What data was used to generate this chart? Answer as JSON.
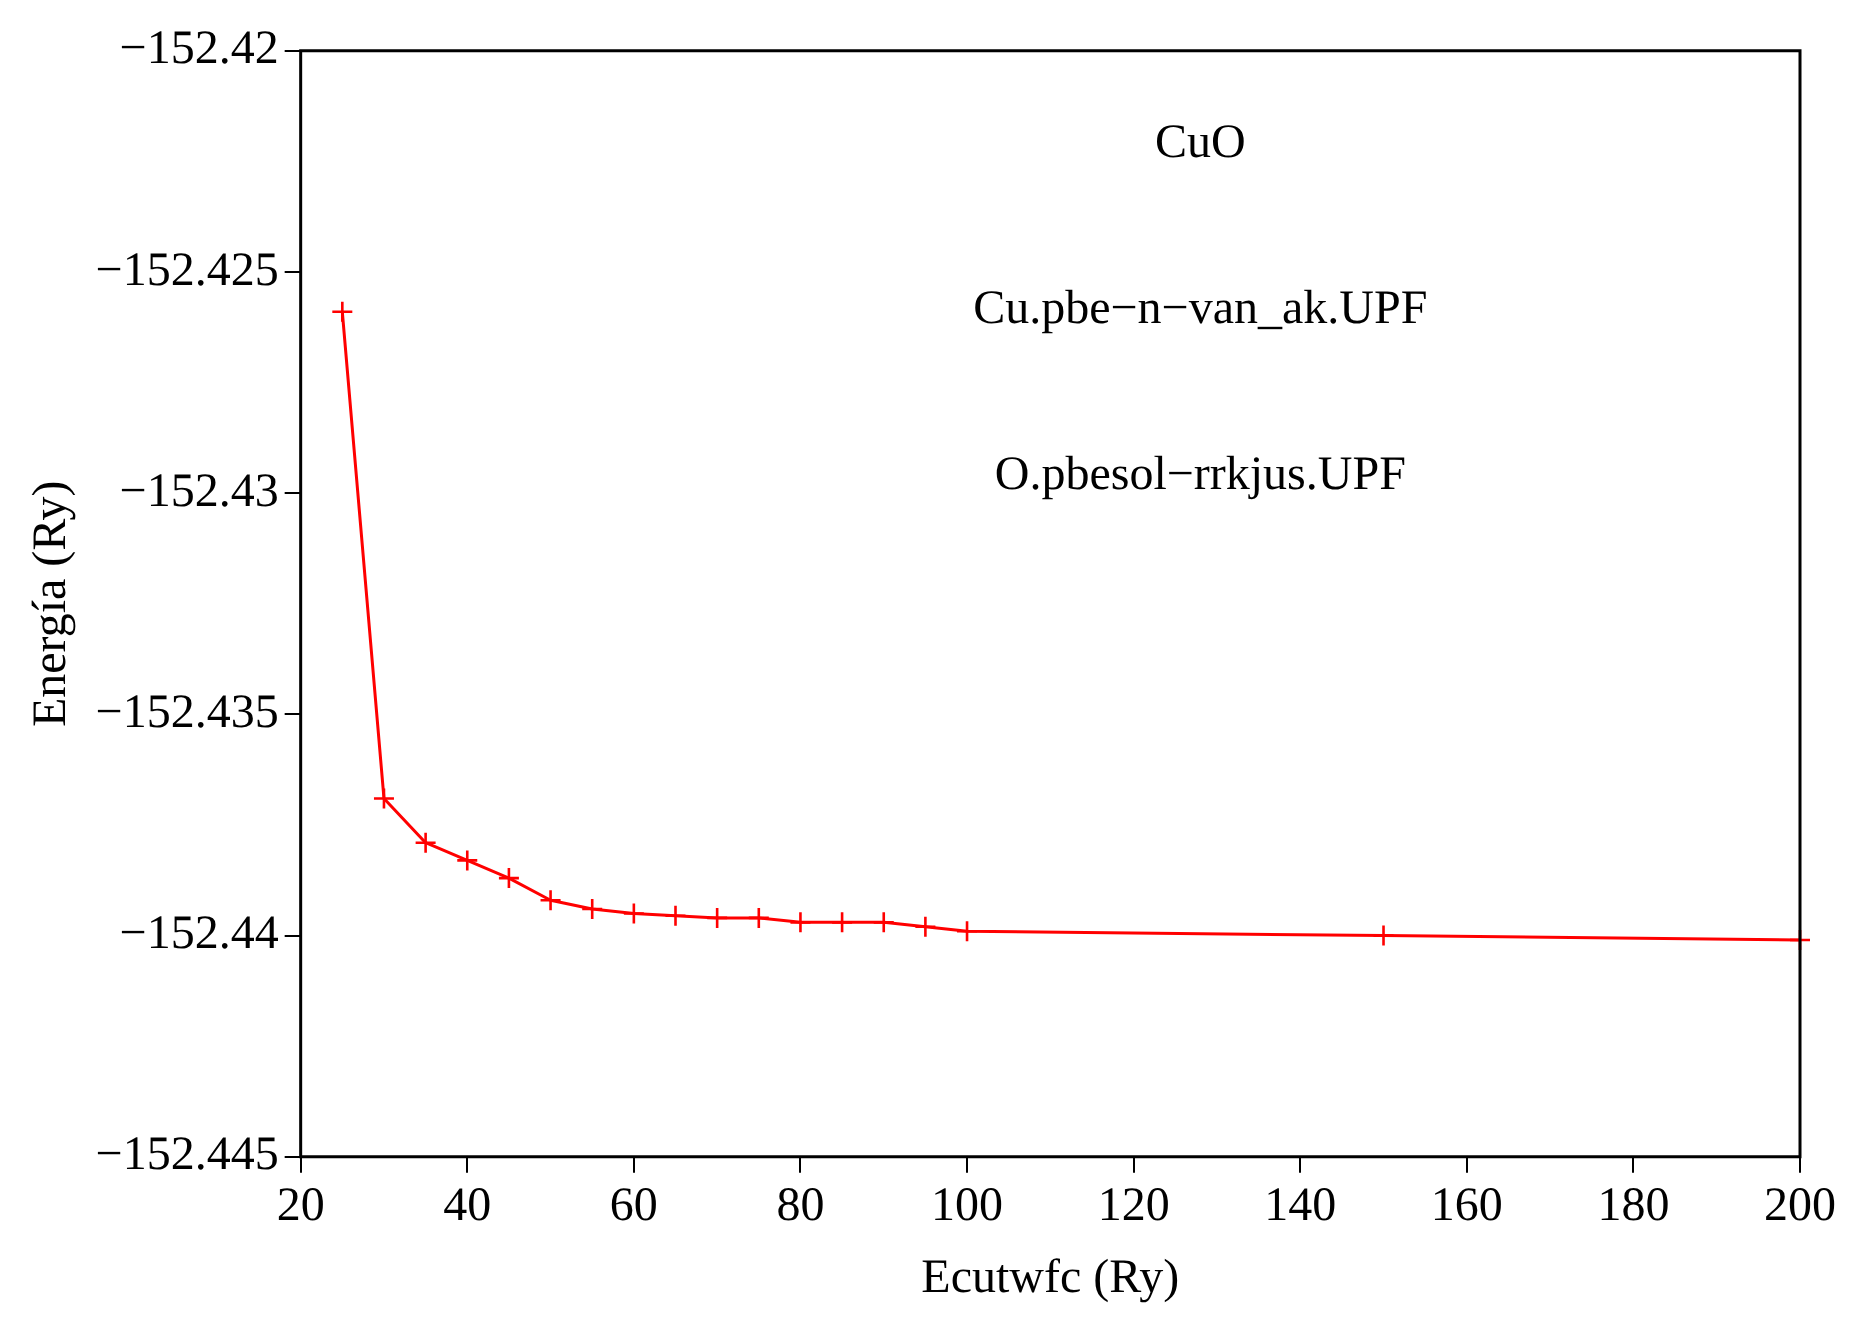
{
  "chart_data": {
    "type": "line",
    "xlabel": "Ecutwfc (Ry)",
    "ylabel": "Energía (Ry)",
    "annotations": [
      "CuO",
      "Cu.pbe−n−van_ak.UPF",
      "O.pbesol−rrkjus.UPF"
    ],
    "x": [
      25,
      30,
      35,
      40,
      45,
      50,
      55,
      60,
      65,
      70,
      75,
      80,
      85,
      90,
      95,
      100,
      150,
      200
    ],
    "series": [
      {
        "color": "#ff0000",
        "values": [
          -152.4259,
          -152.4369,
          -152.4379,
          -152.4383,
          -152.4387,
          -152.4392,
          -152.4394,
          -152.4395,
          -152.43955,
          -152.4396,
          -152.4396,
          -152.4397,
          -152.4397,
          -152.4397,
          -152.4398,
          -152.4399,
          -152.44,
          -152.4401
        ]
      }
    ],
    "xlim": [
      20,
      200
    ],
    "xticks": [
      20,
      40,
      60,
      80,
      100,
      120,
      140,
      160,
      180,
      200
    ],
    "ylim": [
      -152.445,
      -152.42
    ],
    "yticks": [
      {
        "value": -152.445,
        "label": "−152.445"
      },
      {
        "value": -152.44,
        "label": "−152.44"
      },
      {
        "value": -152.435,
        "label": "−152.435"
      },
      {
        "value": -152.43,
        "label": "−152.43"
      },
      {
        "value": -152.425,
        "label": "−152.425"
      },
      {
        "value": -152.42,
        "label": "−152.42"
      }
    ],
    "grid": false,
    "legend": false,
    "marker": "cross",
    "line_style": "solid"
  }
}
